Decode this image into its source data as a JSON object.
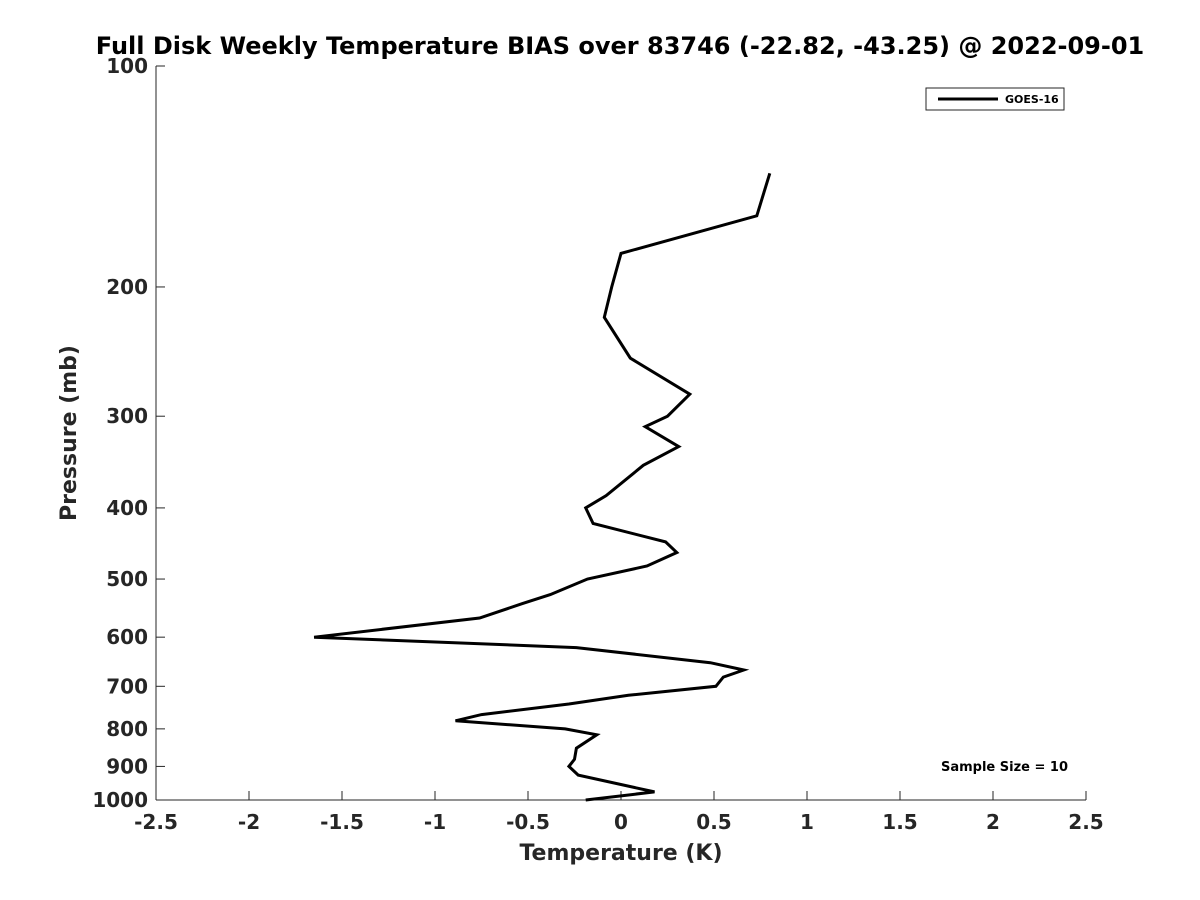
{
  "chart_data": {
    "type": "line",
    "title": "Full Disk Weekly Temperature BIAS over 83746 (-22.82, -43.25) @ 2022-09-01",
    "xlabel": "Temperature (K)",
    "ylabel": "Pressure (mb)",
    "xlim": [
      -2.5,
      2.5
    ],
    "ylim": [
      100,
      1000
    ],
    "y_scale": "log",
    "y_reversed": true,
    "x_ticks": [
      "-2.5",
      "-2",
      "-1.5",
      "-1",
      "-0.5",
      "0",
      "0.5",
      "1",
      "1.5",
      "2",
      "2.5"
    ],
    "y_ticks": [
      "100",
      "200",
      "300",
      "400",
      "500",
      "600",
      "700",
      "800",
      "900",
      "1000"
    ],
    "grid": false,
    "legend": "top-right",
    "series": [
      {
        "name": "GOES-16",
        "color": "#000000",
        "points": [
          [
            0.8,
            140
          ],
          [
            0.73,
            160
          ],
          [
            0.0,
            180
          ],
          [
            -0.05,
            200
          ],
          [
            -0.09,
            220
          ],
          [
            0.05,
            250
          ],
          [
            0.37,
            280
          ],
          [
            0.25,
            300
          ],
          [
            0.13,
            310
          ],
          [
            0.31,
            330
          ],
          [
            0.12,
            350
          ],
          [
            -0.08,
            385
          ],
          [
            -0.19,
            400
          ],
          [
            -0.15,
            420
          ],
          [
            0.24,
            445
          ],
          [
            0.3,
            460
          ],
          [
            0.14,
            480
          ],
          [
            -0.18,
            500
          ],
          [
            -0.38,
            525
          ],
          [
            -0.53,
            540
          ],
          [
            -0.76,
            565
          ],
          [
            -1.65,
            600
          ],
          [
            -0.24,
            620
          ],
          [
            0.48,
            650
          ],
          [
            0.66,
            665
          ],
          [
            0.55,
            680
          ],
          [
            0.51,
            700
          ],
          [
            0.04,
            720
          ],
          [
            -0.28,
            740
          ],
          [
            -0.75,
            765
          ],
          [
            -0.89,
            780
          ],
          [
            -0.3,
            800
          ],
          [
            -0.13,
            815
          ],
          [
            -0.24,
            850
          ],
          [
            -0.25,
            880
          ],
          [
            -0.28,
            900
          ],
          [
            -0.23,
            925
          ],
          [
            0.18,
            975
          ],
          [
            -0.19,
            1000
          ]
        ]
      }
    ],
    "annotation": "Sample Size = 10"
  }
}
